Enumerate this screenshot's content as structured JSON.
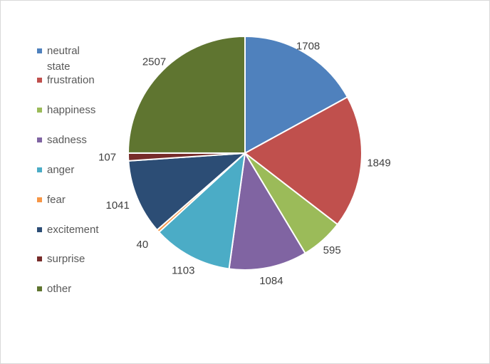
{
  "chart_data": {
    "type": "pie",
    "title": "",
    "categories": [
      "neutral state",
      "frustration",
      "happiness",
      "sadness",
      "anger",
      "fear",
      "excitement",
      "surprise",
      "other"
    ],
    "values": [
      1708,
      1849,
      595,
      1084,
      1103,
      40,
      1041,
      107,
      2507
    ],
    "colors": [
      "#4f81bd",
      "#c0504d",
      "#9bbb59",
      "#8064a2",
      "#4bacc6",
      "#f79646",
      "#2c4d75",
      "#772c2a",
      "#5f7530"
    ],
    "legend": {
      "position": "left",
      "entries": [
        "neutral state",
        "frustration",
        "happiness",
        "sadness",
        "anger",
        "fear",
        "excitement",
        "surprise",
        "other"
      ]
    },
    "data_labels": [
      "1708",
      "1849",
      "595",
      "1084",
      "1103",
      "40",
      "1041",
      "107",
      "2507"
    ]
  }
}
